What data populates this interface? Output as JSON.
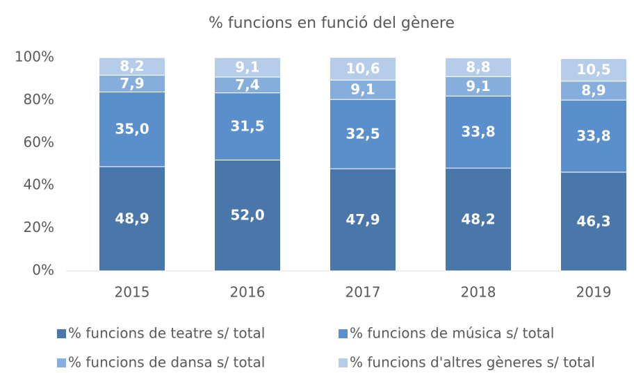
{
  "chart_data": {
    "type": "bar",
    "stacked": true,
    "title": "% funcions en funció del gènere",
    "categories": [
      "2015",
      "2016",
      "2017",
      "2018",
      "2019"
    ],
    "series": [
      {
        "name": "% funcions de teatre s/ total",
        "color": "#4a77aa",
        "values": [
          48.9,
          52.0,
          47.9,
          48.2,
          46.3
        ],
        "value_labels": [
          "48,9",
          "52,0",
          "47,9",
          "48,2",
          "46,3"
        ]
      },
      {
        "name": "% funcions de música s/ total",
        "color": "#5b8fcb",
        "values": [
          35.0,
          31.5,
          32.5,
          33.8,
          33.8
        ],
        "value_labels": [
          "35,0",
          "31,5",
          "32,5",
          "33,8",
          "33,8"
        ]
      },
      {
        "name": "% funcions de dansa s/ total",
        "color": "#86aedd",
        "values": [
          7.9,
          7.4,
          9.1,
          9.1,
          8.9
        ],
        "value_labels": [
          "7,9",
          "7,4",
          "9,1",
          "9,1",
          "8,9"
        ]
      },
      {
        "name": "% funcions d'altres gèneres s/ total",
        "color": "#b6cdea",
        "values": [
          8.2,
          9.1,
          10.6,
          8.8,
          10.5
        ],
        "value_labels": [
          "8,2",
          "9,1",
          "10,6",
          "8,8",
          "10,5"
        ]
      }
    ],
    "ylim": [
      0,
      100
    ],
    "yticks": [
      {
        "value": 0,
        "label": "0%"
      },
      {
        "value": 20,
        "label": "20%"
      },
      {
        "value": 40,
        "label": "40%"
      },
      {
        "value": 60,
        "label": "60%"
      },
      {
        "value": 80,
        "label": "80%"
      },
      {
        "value": 100,
        "label": "100%"
      }
    ],
    "grid": false,
    "legend": "bottom"
  }
}
